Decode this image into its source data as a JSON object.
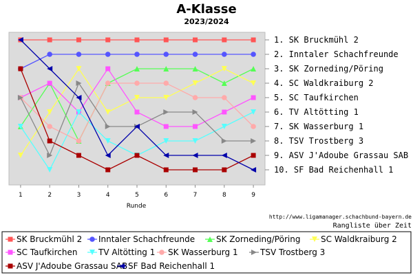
{
  "chart_data": {
    "type": "line",
    "title": "A-Klasse",
    "subtitle": "2023/2024",
    "xlabel": "Runde",
    "ylabel": "",
    "x": [
      1,
      2,
      3,
      4,
      5,
      6,
      7,
      8,
      9
    ],
    "xlim": [
      0.6,
      9.4
    ],
    "ylim": [
      1,
      10
    ],
    "y_inverted": true,
    "grid": false,
    "rank_labels": [
      "1. SK Bruckmühl 2",
      "2. Inntaler Schachfreunde",
      "3. SK Zorneding/Pöring",
      "4. SC Waldkraiburg 2",
      "5. SC Taufkirchen",
      "6. TV Altötting 1",
      "7. SK Wasserburg 1",
      "8. TSV Trostberg 3",
      "9. ASV J'Adoube Grassau SAB",
      "10. SF Bad Reichenhall 1"
    ],
    "credit_url": "http://www.ligamanager.schachbund-bayern.de",
    "credit_caption": "Rangliste über Zeit",
    "legend_position": "bottom",
    "series": [
      {
        "name": "SK Bruckmühl 2",
        "color": "#ff5555",
        "marker": "square",
        "values": [
          1,
          1,
          1,
          1,
          1,
          1,
          1,
          1,
          1
        ]
      },
      {
        "name": "Inntaler Schachfreunde",
        "color": "#5555ff",
        "marker": "circle",
        "values": [
          3,
          2,
          2,
          2,
          2,
          2,
          2,
          2,
          2
        ]
      },
      {
        "name": "SK Zorneding/Pöring",
        "color": "#55ff55",
        "marker": "triangle-up",
        "values": [
          7,
          4,
          8,
          4,
          3,
          3,
          3,
          4,
          3
        ]
      },
      {
        "name": "SC Waldkraiburg 2",
        "color": "#ffff55",
        "marker": "triangle-down",
        "values": [
          9,
          6,
          3,
          6,
          5,
          5,
          4,
          3,
          4
        ]
      },
      {
        "name": "SC Taufkirchen",
        "color": "#ff55ff",
        "marker": "square",
        "values": [
          5,
          4,
          6,
          3,
          6,
          7,
          7,
          6,
          5
        ]
      },
      {
        "name": "TV Altötting 1",
        "color": "#55ffff",
        "marker": "triangle-down",
        "values": [
          7,
          10,
          6,
          8,
          9,
          8,
          8,
          7,
          6
        ]
      },
      {
        "name": "SK Wasserburg 1",
        "color": "#ffaaaa",
        "marker": "circle",
        "values": [
          5,
          7,
          8,
          4,
          4,
          4,
          5,
          5,
          7
        ]
      },
      {
        "name": "TSV Trostberg 3",
        "color": "#888888",
        "marker": "triangle-right",
        "values": [
          5,
          9,
          4,
          7,
          7,
          6,
          6,
          8,
          8
        ]
      },
      {
        "name": "ASV J'Adoube Grassau SAB",
        "color": "#aa0000",
        "marker": "square",
        "values": [
          3,
          8,
          9,
          10,
          9,
          10,
          10,
          10,
          9
        ]
      },
      {
        "name": "SF Bad Reichenhall 1",
        "color": "#0000aa",
        "marker": "triangle-left",
        "values": [
          1,
          3,
          5,
          9,
          7,
          9,
          9,
          9,
          10
        ]
      }
    ]
  }
}
